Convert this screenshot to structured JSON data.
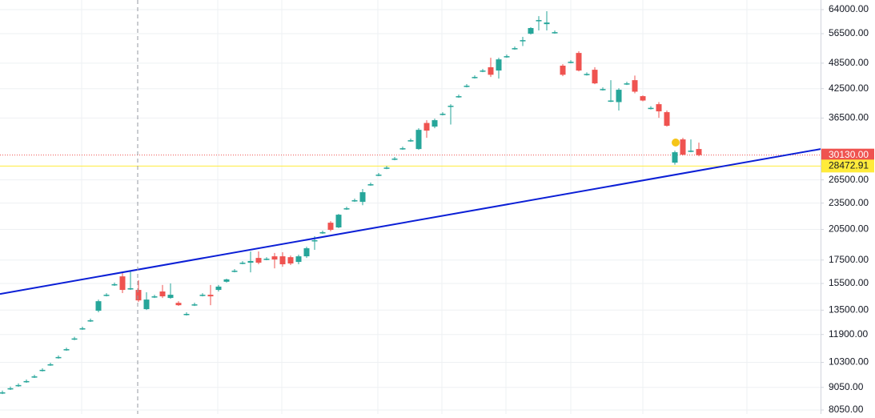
{
  "chart_data": {
    "type": "candlestick",
    "log_scale": true,
    "grid": true,
    "ylim": [
      7885,
      67260
    ],
    "yticks": [
      {
        "value": 64000,
        "label": "64000.00"
      },
      {
        "value": 56500,
        "label": "56500.00"
      },
      {
        "value": 48500,
        "label": "48500.00"
      },
      {
        "value": 42500,
        "label": "42500.00"
      },
      {
        "value": 36500,
        "label": "36500.00"
      },
      {
        "value": 26500,
        "label": "26500.00"
      },
      {
        "value": 23500,
        "label": "23500.00"
      },
      {
        "value": 20500,
        "label": "20500.00"
      },
      {
        "value": 17500,
        "label": "17500.00"
      },
      {
        "value": 15500,
        "label": "15500.00"
      },
      {
        "value": 13500,
        "label": "13500.00"
      },
      {
        "value": 11900,
        "label": "11900.00"
      },
      {
        "value": 10300,
        "label": "10300.00"
      },
      {
        "value": 9050,
        "label": "9050.00"
      },
      {
        "value": 8050,
        "label": "8050.00"
      }
    ],
    "up_color": "#26a69a",
    "down_color": "#ef5350",
    "open": [
      8820,
      9010,
      9160,
      9350,
      9580,
      9910,
      10200,
      10590,
      11030,
      11660,
      12290,
      12810,
      13460,
      14620,
      15440,
      16080,
      15120,
      14990,
      13570,
      14500,
      14870,
      14380,
      14020,
      13240,
      13910,
      14620,
      14620,
      14990,
      15640,
      16560,
      17260,
      17260,
      17690,
      17620,
      17840,
      17840,
      17760,
      17330,
      17840,
      19390,
      20210,
      21230,
      20720,
      22880,
      23850,
      23650,
      25910,
      27230,
      28240,
      29590,
      31220,
      32540,
      31090,
      35580,
      34920,
      37320,
      38900,
      40880,
      43150,
      45150,
      46680,
      47480,
      46680,
      50290,
      52420,
      54640,
      56480,
      60620,
      59360,
      56950,
      47870,
      48850,
      51130,
      45860,
      46870,
      42420,
      39970,
      39640,
      43680,
      44410,
      40880,
      38480,
      39220,
      37630,
      28970,
      32680,
      30830,
      31090
    ],
    "high": [
      8900,
      9090,
      9240,
      9430,
      9660,
      9990,
      10280,
      10680,
      11120,
      11760,
      12390,
      12920,
      14260,
      14740,
      15570,
      16420,
      16560,
      15760,
      14810,
      14620,
      15380,
      15510,
      14140,
      13350,
      14030,
      14740,
      15380,
      15380,
      15890,
      16700,
      17400,
      18300,
      18300,
      17760,
      18150,
      18220,
      17910,
      17990,
      18750,
      19800,
      20380,
      21410,
      22220,
      23070,
      24050,
      25280,
      26130,
      27460,
      28480,
      29840,
      31480,
      32810,
      34630,
      36100,
      36400,
      37630,
      39220,
      41220,
      43510,
      45530,
      47070,
      49870,
      49870,
      50710,
      52860,
      55580,
      58420,
      61870,
      63470,
      57430,
      48250,
      49260,
      51590,
      46240,
      47480,
      42780,
      44410,
      42610,
      44050,
      45480,
      41050,
      38800,
      39640,
      37950,
      30830,
      32950,
      32680,
      32130
    ],
    "low": [
      8740,
      8930,
      9080,
      9270,
      9500,
      9830,
      10120,
      10500,
      10940,
      11560,
      12190,
      12700,
      13350,
      14500,
      15310,
      14750,
      14990,
      14080,
      13510,
      14380,
      14380,
      14320,
      13800,
      13130,
      13790,
      14500,
      13850,
      14870,
      15570,
      16420,
      17120,
      16420,
      17120,
      17480,
      16760,
      16900,
      17050,
      17120,
      17690,
      18450,
      20040,
      20300,
      20640,
      22690,
      23650,
      23250,
      25700,
      27010,
      28010,
      29340,
      30960,
      32270,
      30960,
      32950,
      34630,
      37010,
      35290,
      40540,
      42790,
      44780,
      46290,
      45150,
      44780,
      49880,
      51990,
      52990,
      56240,
      57450,
      57450,
      56480,
      45340,
      48450,
      46480,
      45480,
      43500,
      42070,
      39640,
      37950,
      43320,
      41490,
      39800,
      38160,
      36550,
      34920,
      28670,
      30080,
      30580,
      29950
    ],
    "close": [
      8820,
      9010,
      9160,
      9350,
      9580,
      9910,
      10200,
      10590,
      11030,
      11660,
      12290,
      12810,
      14140,
      14620,
      15440,
      14990,
      15120,
      14200,
      14260,
      14500,
      14500,
      14620,
      13850,
      13240,
      13910,
      14620,
      14500,
      15250,
      15830,
      16560,
      17260,
      17410,
      17260,
      17620,
      17550,
      17120,
      17190,
      17840,
      18600,
      19390,
      20210,
      20460,
      22130,
      22880,
      23850,
      24860,
      25910,
      27230,
      28240,
      29590,
      31220,
      32540,
      34340,
      34200,
      36100,
      37320,
      38900,
      40880,
      43150,
      45150,
      46680,
      45670,
      49460,
      50290,
      52420,
      54640,
      58170,
      60620,
      59850,
      56950,
      45670,
      48850,
      46680,
      45860,
      43680,
      42420,
      39970,
      42260,
      43680,
      41840,
      39970,
      38480,
      37790,
      35070,
      30580,
      30200,
      30830,
      30130
    ],
    "trendline": {
      "x": [
        -0.3,
        102.2
      ],
      "values": [
        14680,
        31090
      ],
      "color": "#0b1fd6"
    },
    "price_lines": [
      {
        "value": 30130,
        "label": "30130.00",
        "color": "#ef5350",
        "text_color": "#ffffff",
        "style": "dotted"
      },
      {
        "value": 28472.91,
        "label": "28472.91",
        "color": "#ffeb3b",
        "text_color": "#131722",
        "style": "solid"
      }
    ]
  }
}
